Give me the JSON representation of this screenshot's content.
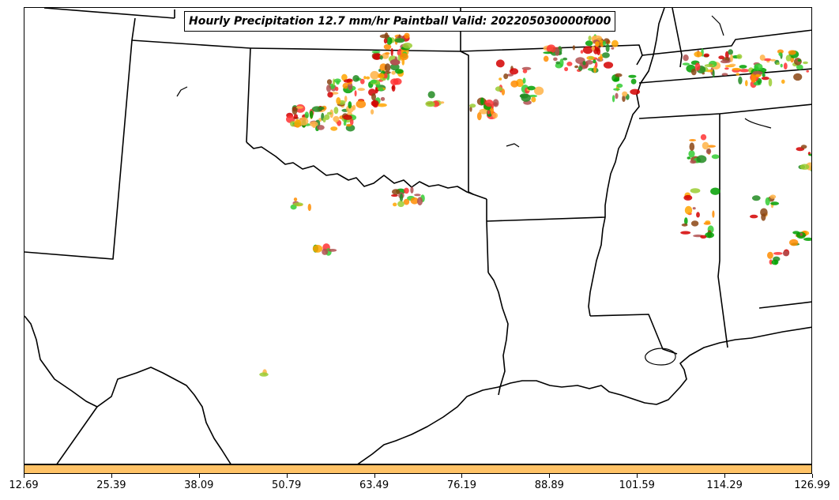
{
  "title": "Hourly Precipitation 12.7 mm/hr Paintball Valid: 202205030000f000",
  "colorbar": {
    "color": "#ffc266",
    "ticks": [
      "12.69",
      "25.39",
      "38.09",
      "50.79",
      "63.49",
      "76.19",
      "88.89",
      "101.59",
      "114.29",
      "126.99"
    ]
  },
  "member_colors": [
    "#d40000",
    "#ff3333",
    "#ff8c00",
    "#ffa500",
    "#ffb347",
    "#33cc33",
    "#00a000",
    "#228b22",
    "#8b4513",
    "#9acd32",
    "#b05050"
  ]
}
